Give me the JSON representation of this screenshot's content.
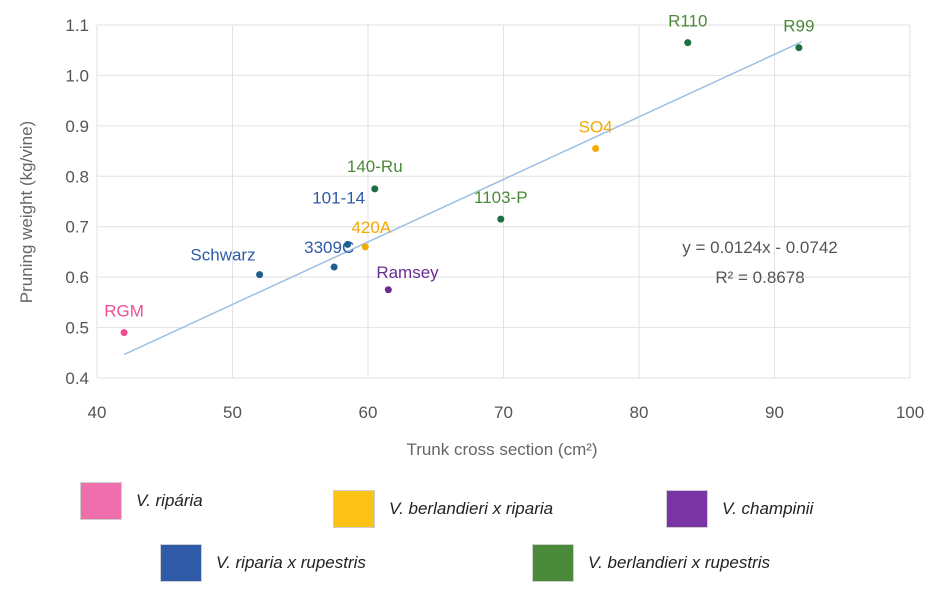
{
  "chart_data": {
    "type": "scatter",
    "xlabel": "Trunk cross section (cm²)",
    "ylabel": "Pruning weight (kg/vine)",
    "xlim": [
      40,
      100
    ],
    "ylim": [
      0.4,
      1.1
    ],
    "xticks": [
      "40",
      "50",
      "60",
      "70",
      "80",
      "90",
      "100"
    ],
    "yticks": [
      "0.4",
      "0.5",
      "0.6",
      "0.7",
      "0.8",
      "0.9",
      "1.0",
      "1.1"
    ],
    "points": [
      {
        "label": "RGM",
        "x": 42.0,
        "y": 0.49,
        "group": "V. riparia"
      },
      {
        "label": "Schwarz",
        "x": 52.0,
        "y": 0.605,
        "group": "V. riparia x rupestris"
      },
      {
        "label": "3309C",
        "x": 57.5,
        "y": 0.62,
        "group": "V. riparia x rupestris"
      },
      {
        "label": "101-14",
        "x": 58.5,
        "y": 0.665,
        "group": "V. riparia x rupestris"
      },
      {
        "label": "420A",
        "x": 59.8,
        "y": 0.66,
        "group": "V. berlandieri x riparia"
      },
      {
        "label": "140-Ru",
        "x": 60.5,
        "y": 0.775,
        "group": "V. berlandieri x rupestris"
      },
      {
        "label": "Ramsey",
        "x": 61.5,
        "y": 0.575,
        "group": "V. champinii"
      },
      {
        "label": "1103-P",
        "x": 69.8,
        "y": 0.715,
        "group": "V. berlandieri x rupestris"
      },
      {
        "label": "SO4",
        "x": 76.8,
        "y": 0.855,
        "group": "V. berlandieri x riparia"
      },
      {
        "label": "R110",
        "x": 83.6,
        "y": 1.065,
        "group": "V. berlandieri x rupestris"
      },
      {
        "label": "R99",
        "x": 91.8,
        "y": 1.055,
        "group": "V. berlandieri x rupestris"
      }
    ],
    "trendline": {
      "slope": 0.0124,
      "intercept": -0.0742,
      "x_range": [
        42,
        92
      ],
      "equation": "y = 0.0124x - 0.0742",
      "r2": "R² = 0.8678",
      "color": "#9dbfe3"
    },
    "legend": [
      {
        "label": "V. ripária",
        "color": "#ef6fad"
      },
      {
        "label": "V. berlandieri x riparia",
        "color": "#fcc218"
      },
      {
        "label": "V. champinii",
        "color": "#7a35a5"
      },
      {
        "label": "V. riparia x rupestris",
        "color": "#2e5aa8"
      },
      {
        "label": "V. berlandieri x rupestris",
        "color": "#4b8a3a"
      }
    ],
    "group_colors": {
      "V. riparia": {
        "dot": "#ee4f93",
        "text": "#ee4f93"
      },
      "V. riparia x rupestris": {
        "dot": "#1f5f8f",
        "text": "#2e5aa8"
      },
      "V. berlandieri x riparia": {
        "dot": "#f5a800",
        "text": "#f5a800"
      },
      "V. berlandieri x rupestris": {
        "dot": "#1c7040",
        "text": "#4b8a3a"
      },
      "V. champinii": {
        "dot": "#6a2c91",
        "text": "#6a2c91"
      }
    },
    "grid": true
  }
}
